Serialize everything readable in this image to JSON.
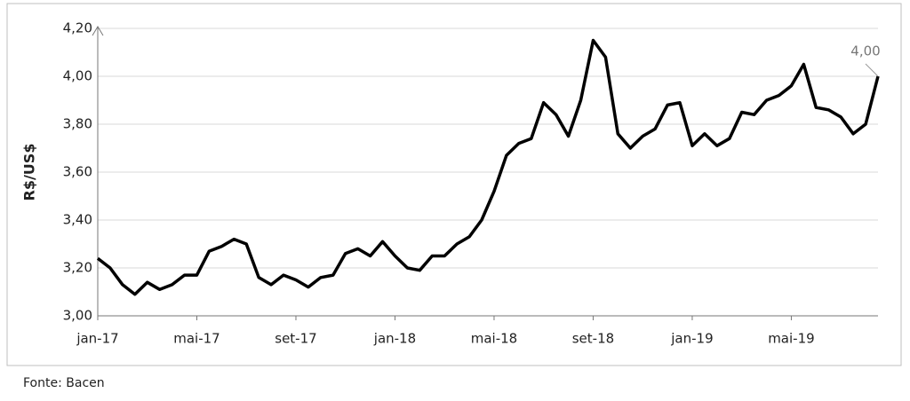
{
  "chart_data": {
    "type": "line",
    "y_label": "R$/US$",
    "source": "Fonte: Bacen",
    "annotation": "4,00",
    "categories": [
      "jan-17",
      null,
      null,
      null,
      null,
      null,
      null,
      null,
      "mai-17",
      null,
      null,
      null,
      null,
      null,
      null,
      null,
      "set-17",
      null,
      null,
      null,
      null,
      null,
      null,
      null,
      "jan-18",
      null,
      null,
      null,
      null,
      null,
      null,
      null,
      "mai-18",
      null,
      null,
      null,
      null,
      null,
      null,
      null,
      "set-18",
      null,
      null,
      null,
      null,
      null,
      null,
      null,
      "jan-19",
      null,
      null,
      null,
      null,
      null,
      null,
      null,
      "mai-19",
      null,
      null,
      null,
      null,
      null,
      null,
      null
    ],
    "series": [
      {
        "name": "R$/US$",
        "color": "#000000",
        "values": [
          3.24,
          3.2,
          3.13,
          3.09,
          3.14,
          3.11,
          3.13,
          3.17,
          3.17,
          3.27,
          3.29,
          3.32,
          3.3,
          3.16,
          3.13,
          3.17,
          3.15,
          3.12,
          3.16,
          3.17,
          3.26,
          3.28,
          3.25,
          3.31,
          3.25,
          3.2,
          3.19,
          3.25,
          3.25,
          3.3,
          3.33,
          3.4,
          3.52,
          3.67,
          3.72,
          3.74,
          3.89,
          3.84,
          3.75,
          3.9,
          4.15,
          4.08,
          3.76,
          3.7,
          3.75,
          3.78,
          3.88,
          3.89,
          3.71,
          3.76,
          3.71,
          3.74,
          3.85,
          3.84,
          3.9,
          3.92,
          3.96,
          4.05,
          3.87,
          3.86,
          3.83,
          3.76,
          3.8,
          4.0
        ]
      }
    ],
    "ylim": [
      3.0,
      4.2
    ],
    "yticks": [
      {
        "value": 3.0,
        "label": "3,00"
      },
      {
        "value": 3.2,
        "label": "3,20"
      },
      {
        "value": 3.4,
        "label": "3,40"
      },
      {
        "value": 3.6,
        "label": "3,60"
      },
      {
        "value": 3.8,
        "label": "3,80"
      },
      {
        "value": 4.0,
        "label": "4,00"
      },
      {
        "value": 4.2,
        "label": "4,20"
      }
    ],
    "grid": true
  }
}
